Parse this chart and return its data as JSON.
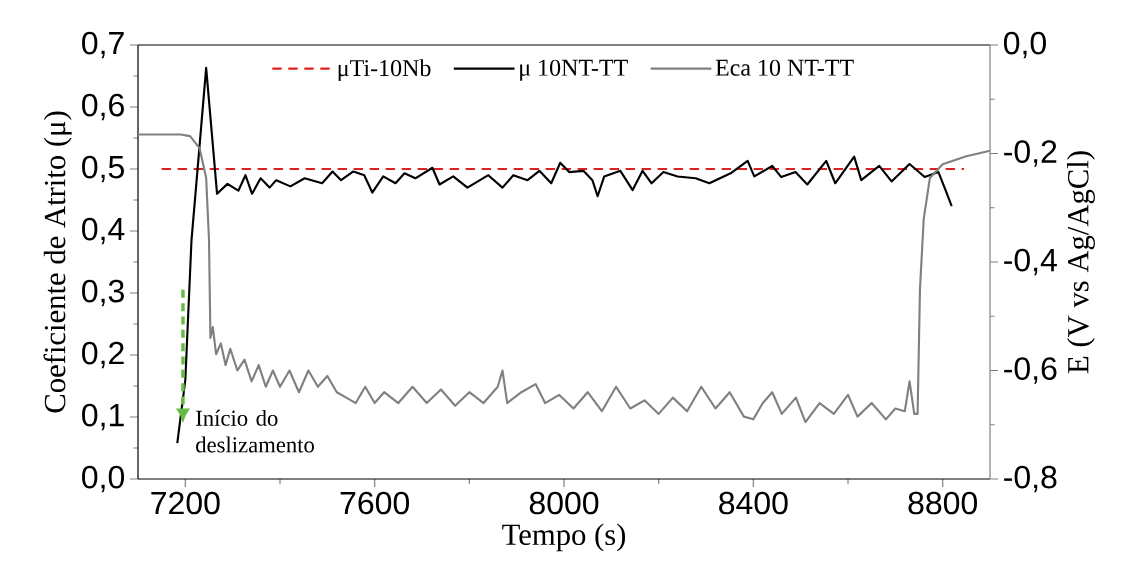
{
  "chart_data": {
    "type": "line",
    "xlabel": "Tempo (s)",
    "ylabel": "Coeficiente de Atrito (μ)",
    "y2label": "E (V vs Ag/AgCl)",
    "xlim": [
      7100,
      8900
    ],
    "xticks": [
      7200,
      7600,
      8000,
      8400,
      8800
    ],
    "ylim": [
      0,
      0.7
    ],
    "yticks": [
      {
        "value": 0,
        "label": "0,0"
      },
      {
        "value": 0.1,
        "label": "0,1"
      },
      {
        "value": 0.2,
        "label": "0,2"
      },
      {
        "value": 0.3,
        "label": "0,3"
      },
      {
        "value": 0.4,
        "label": "0,4"
      },
      {
        "value": 0.5,
        "label": "0,5"
      },
      {
        "value": 0.6,
        "label": "0,6"
      },
      {
        "value": 0.7,
        "label": "0,7"
      }
    ],
    "y2lim": [
      -0.8,
      0
    ],
    "y2ticks": [
      {
        "value": -0.8,
        "label": "-0,8"
      },
      {
        "value": -0.6,
        "label": "-0,6"
      },
      {
        "value": -0.4,
        "label": "-0,4"
      },
      {
        "value": -0.2,
        "label": "-0,2"
      },
      {
        "value": 0,
        "label": "0,0"
      }
    ],
    "legend": "top",
    "grid": false,
    "series": [
      {
        "name": "μTi-10Nb",
        "color": "#e02020",
        "line_style": "dashed",
        "x": [
          7150,
          8845
        ],
        "values": [
          0.5,
          0.5
        ]
      },
      {
        "name": "μ 10NT-TT",
        "color": "#000000",
        "line_style": "solid",
        "x": [
          7183,
          7200,
          7213,
          7232,
          7244,
          7267,
          7289,
          7312,
          7327,
          7341,
          7359,
          7378,
          7392,
          7422,
          7452,
          7489,
          7511,
          7529,
          7555,
          7578,
          7595,
          7618,
          7644,
          7663,
          7686,
          7722,
          7737,
          7766,
          7796,
          7840,
          7870,
          7893,
          7923,
          7948,
          7973,
          7992,
          8011,
          8041,
          8060,
          8071,
          8085,
          8119,
          8145,
          8166,
          8185,
          8210,
          8240,
          8278,
          8307,
          8352,
          8388,
          8402,
          8440,
          8459,
          8489,
          8514,
          8554,
          8573,
          8613,
          8628,
          8666,
          8692,
          8730,
          8762,
          8791,
          8804,
          8819
        ],
        "values": [
          0.058,
          0.16,
          0.385,
          0.555,
          0.663,
          0.46,
          0.476,
          0.465,
          0.49,
          0.46,
          0.485,
          0.47,
          0.482,
          0.472,
          0.485,
          0.477,
          0.496,
          0.482,
          0.496,
          0.49,
          0.462,
          0.488,
          0.477,
          0.493,
          0.485,
          0.502,
          0.475,
          0.488,
          0.47,
          0.49,
          0.47,
          0.49,
          0.482,
          0.497,
          0.477,
          0.51,
          0.495,
          0.497,
          0.482,
          0.456,
          0.488,
          0.497,
          0.466,
          0.497,
          0.477,
          0.495,
          0.488,
          0.485,
          0.477,
          0.493,
          0.513,
          0.488,
          0.505,
          0.487,
          0.495,
          0.475,
          0.513,
          0.477,
          0.52,
          0.482,
          0.505,
          0.48,
          0.508,
          0.487,
          0.495,
          0.47,
          0.44
        ]
      },
      {
        "name": "Eca 10 NT-TT",
        "color": "#808080",
        "line_style": "solid",
        "axis": "y2",
        "x": [
          7100,
          7190,
          7210,
          7230,
          7244,
          7250,
          7253,
          7258,
          7265,
          7275,
          7285,
          7295,
          7310,
          7325,
          7340,
          7355,
          7370,
          7385,
          7400,
          7420,
          7440,
          7460,
          7480,
          7500,
          7520,
          7540,
          7560,
          7580,
          7600,
          7620,
          7650,
          7680,
          7710,
          7740,
          7770,
          7800,
          7830,
          7860,
          7870,
          7880,
          7910,
          7940,
          7960,
          7990,
          8020,
          8050,
          8080,
          8110,
          8140,
          8170,
          8200,
          8230,
          8260,
          8290,
          8320,
          8350,
          8380,
          8400,
          8420,
          8440,
          8460,
          8490,
          8510,
          8540,
          8570,
          8600,
          8620,
          8650,
          8680,
          8700,
          8720,
          8730,
          8740,
          8747,
          8752,
          8760,
          8773,
          8800,
          8850,
          8900
        ],
        "values": [
          -0.165,
          -0.165,
          -0.168,
          -0.19,
          -0.245,
          -0.36,
          -0.54,
          -0.52,
          -0.57,
          -0.55,
          -0.59,
          -0.56,
          -0.6,
          -0.58,
          -0.62,
          -0.59,
          -0.63,
          -0.6,
          -0.63,
          -0.6,
          -0.64,
          -0.6,
          -0.63,
          -0.61,
          -0.64,
          -0.65,
          -0.66,
          -0.63,
          -0.66,
          -0.64,
          -0.66,
          -0.63,
          -0.66,
          -0.635,
          -0.665,
          -0.64,
          -0.66,
          -0.63,
          -0.6,
          -0.66,
          -0.64,
          -0.625,
          -0.66,
          -0.645,
          -0.67,
          -0.64,
          -0.675,
          -0.63,
          -0.67,
          -0.655,
          -0.68,
          -0.65,
          -0.675,
          -0.63,
          -0.67,
          -0.64,
          -0.685,
          -0.69,
          -0.66,
          -0.64,
          -0.68,
          -0.65,
          -0.695,
          -0.66,
          -0.68,
          -0.645,
          -0.685,
          -0.66,
          -0.69,
          -0.67,
          -0.675,
          -0.62,
          -0.68,
          -0.68,
          -0.45,
          -0.32,
          -0.245,
          -0.22,
          -0.205,
          -0.195
        ]
      }
    ],
    "annotations": [
      {
        "text": "Início do deslizamento",
        "x": 7195,
        "y": 0.09
      }
    ]
  }
}
